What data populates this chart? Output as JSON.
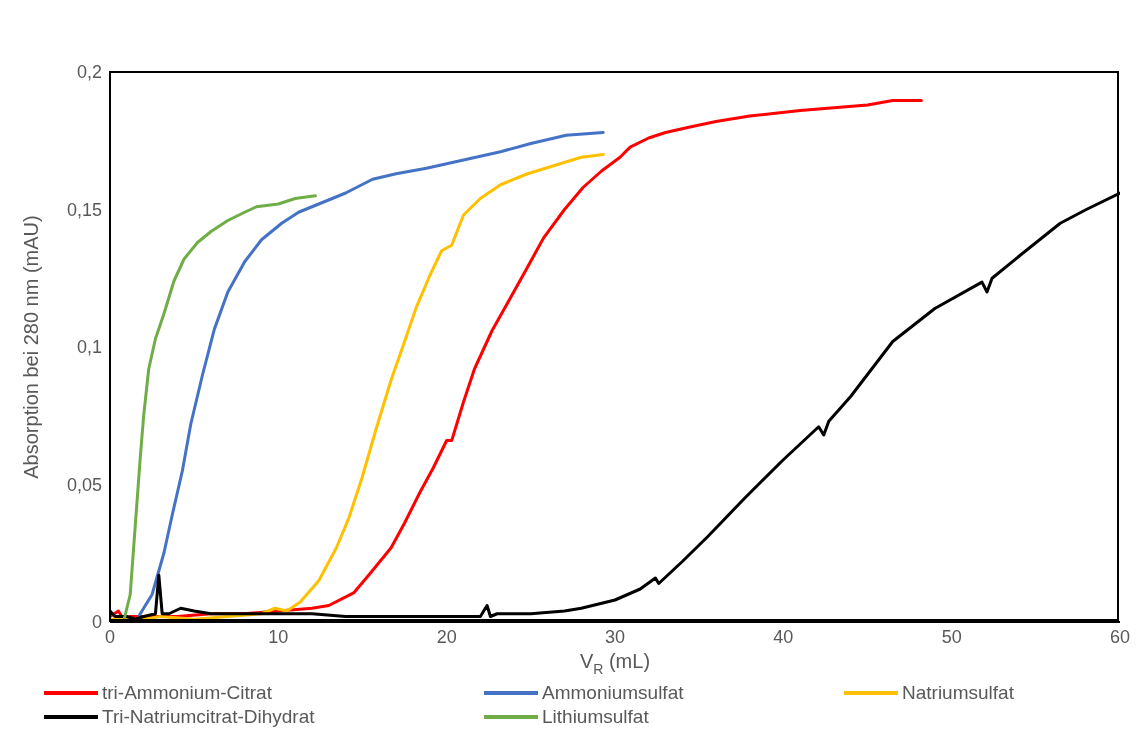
{
  "chart_data": {
    "type": "line",
    "xlabel": "V$_{R}$ (mL)",
    "ylabel": "Absorption bei 280 nm (mAU)",
    "xlim": [
      0,
      60
    ],
    "xticks": [
      0,
      10,
      20,
      30,
      40,
      50,
      60
    ],
    "ylim": [
      0,
      0.2
    ],
    "yticks": [
      0,
      {
        "value": 0.05,
        "label": "0,05"
      },
      {
        "value": 0.1,
        "label": "0,1"
      },
      {
        "value": 0.15,
        "label": "0,15"
      },
      {
        "value": 0.2,
        "label": "0,2"
      }
    ],
    "grid": false,
    "legend": "bottom",
    "marker": "none",
    "line_style": "solid",
    "series": [
      {
        "name": "tri-Ammonium-Citrat",
        "color": "#ff0000",
        "x": [
          0,
          0.5,
          0.8,
          1.2,
          2,
          4,
          6,
          8,
          10,
          12,
          13,
          14.5,
          15.5,
          16.7,
          17.5,
          18.4,
          19.2,
          20,
          20.3,
          21,
          21.65,
          22.7,
          23.8,
          24.8,
          25.75,
          27,
          28.1,
          29.2,
          30.3,
          30.9,
          32,
          33,
          34.45,
          36,
          38,
          41,
          43,
          45,
          46.5,
          48.2
        ],
        "values": [
          0.002,
          0.004,
          0.001,
          0.002,
          0.002,
          0.002,
          0.003,
          0.003,
          0.004,
          0.005,
          0.006,
          0.0107,
          0.018,
          0.027,
          0.036,
          0.047,
          0.056,
          0.066,
          0.066,
          0.08,
          0.092,
          0.106,
          0.118,
          0.129,
          0.1396,
          0.15,
          0.158,
          0.164,
          0.169,
          0.1727,
          0.176,
          0.178,
          0.18,
          0.182,
          0.184,
          0.186,
          0.187,
          0.188,
          0.1896,
          0.1896
        ]
      },
      {
        "name": "Ammoniumsulfat",
        "color": "#4472c4",
        "x": [
          0.5,
          1.5,
          2.5,
          3.2,
          3.7,
          4.3,
          4.8,
          5.5,
          6.2,
          7,
          8,
          9,
          10.2,
          11.2,
          12.4,
          14,
          15.6,
          17,
          18.8,
          21,
          23.2,
          25,
          27.1,
          29.3
        ],
        "values": [
          0,
          0,
          0.01,
          0.025,
          0.039,
          0.055,
          0.072,
          0.09,
          0.1065,
          0.12,
          0.131,
          0.139,
          0.145,
          0.149,
          0.152,
          0.156,
          0.161,
          0.163,
          0.165,
          0.168,
          0.171,
          0.174,
          0.177,
          0.178
        ]
      },
      {
        "name": "Natriumsulfat",
        "color": "#ffc000",
        "x": [
          0,
          1,
          2,
          3,
          5,
          7,
          9,
          9.8,
          10.5,
          11.3,
          12.4,
          13.45,
          14.2,
          14.95,
          15.8,
          16.7,
          17.5,
          18.2,
          19,
          19.7,
          20.3,
          21,
          22,
          23.2,
          24.8,
          26.4,
          28,
          29.3
        ],
        "values": [
          0.001,
          0.001,
          0.001,
          0.002,
          0.001,
          0.002,
          0.003,
          0.005,
          0.004,
          0.0073,
          0.015,
          0.027,
          0.038,
          0.052,
          0.07,
          0.088,
          0.102,
          0.1145,
          0.126,
          0.135,
          0.137,
          0.148,
          0.154,
          0.159,
          0.163,
          0.166,
          0.169,
          0.17
        ]
      },
      {
        "name": "Tri-Natriumcitrat-Dihydrat",
        "color": "#000000",
        "x": [
          0,
          0.3,
          1,
          1.5,
          2,
          2.7,
          2.9,
          3.1,
          3.5,
          4.2,
          5,
          6,
          8,
          10,
          12,
          14,
          16,
          18,
          20,
          22,
          22.4,
          22.6,
          23,
          25,
          27,
          28,
          30,
          31.5,
          32.4,
          32.6,
          34,
          35.5,
          37.7,
          40,
          42.1,
          42.4,
          42.7,
          44,
          46.5,
          49,
          51.8,
          52.1,
          52.4,
          54,
          56.45,
          58,
          60
        ],
        "values": [
          0.004,
          0.002,
          0.002,
          0.001,
          0.002,
          0.003,
          0.017,
          0.003,
          0.003,
          0.005,
          0.004,
          0.003,
          0.003,
          0.003,
          0.003,
          0.002,
          0.002,
          0.002,
          0.002,
          0.002,
          0.006,
          0.002,
          0.003,
          0.003,
          0.004,
          0.005,
          0.008,
          0.012,
          0.016,
          0.014,
          0.022,
          0.031,
          0.045,
          0.059,
          0.071,
          0.068,
          0.073,
          0.082,
          0.102,
          0.114,
          0.1236,
          0.12,
          0.125,
          0.133,
          0.145,
          0.15,
          0.156
        ]
      },
      {
        "name": "Lithiumsulfat",
        "color": "#70ad47",
        "x": [
          0.5,
          0.8,
          1.2,
          1.5,
          1.8,
          2,
          2.3,
          2.7,
          3.2,
          3.8,
          4.4,
          5.2,
          6,
          7,
          8,
          8.7,
          10,
          11,
          12.2
        ],
        "values": [
          0,
          0,
          0.01,
          0.035,
          0.06,
          0.075,
          0.092,
          0.103,
          0.112,
          0.124,
          0.132,
          0.138,
          0.142,
          0.146,
          0.149,
          0.151,
          0.152,
          0.154,
          0.155
        ]
      }
    ]
  }
}
